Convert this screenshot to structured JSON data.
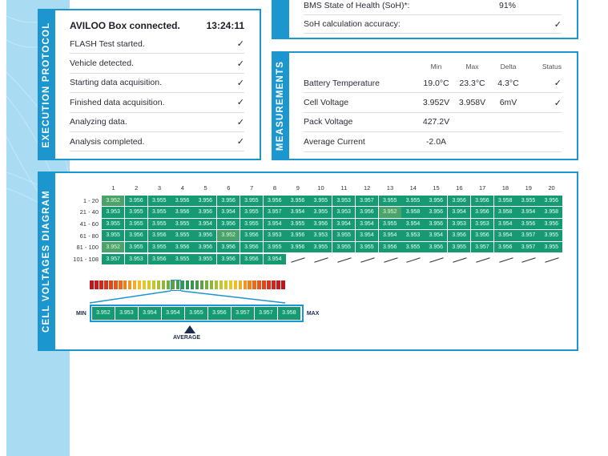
{
  "colors": {
    "accent": "#1b96cf",
    "side_band": "#a9dcf3",
    "cell_normal": "#159a74",
    "cell_low": "#4aa36a",
    "text_dark": "#1d2a4a"
  },
  "soh_panel": {
    "rows": [
      {
        "label": "BMS State of Health (SoH)*:",
        "value": "91%"
      },
      {
        "label": "SoH calculation accuracy:",
        "value": "✓"
      }
    ]
  },
  "execution_protocol": {
    "title": "EXECUTION PROTOCOL",
    "header": {
      "label": "AVILOO Box connected.",
      "time": "13:24:11"
    },
    "steps": [
      {
        "label": "FLASH Test started.",
        "status": "✓"
      },
      {
        "label": "Vehicle detected.",
        "status": "✓"
      },
      {
        "label": "Starting data acquisition.",
        "status": "✓"
      },
      {
        "label": "Finished data acquisition.",
        "status": "✓"
      },
      {
        "label": "Analyzing data.",
        "status": "✓"
      },
      {
        "label": "Analysis completed.",
        "status": "✓"
      }
    ]
  },
  "measurements": {
    "title": "MEASUREMENTS",
    "columns": [
      "",
      "Min",
      "Max",
      "Delta",
      "Status"
    ],
    "rows": [
      {
        "label": "Battery Temperature",
        "min": "19.0°C",
        "max": "23.3°C",
        "delta": "4.3°C",
        "status": "✓"
      },
      {
        "label": "Cell Voltage",
        "min": "3.952V",
        "max": "3.958V",
        "delta": "6mV",
        "status": "✓"
      },
      {
        "label": "Pack Voltage",
        "min": "427.2V",
        "max": "",
        "delta": "",
        "status": ""
      },
      {
        "label": "Average Current",
        "min": "-2.0A",
        "max": "",
        "delta": "",
        "status": ""
      }
    ]
  },
  "cell_voltages": {
    "title": "CELL VOLTAGES DIAGRAM",
    "columns": [
      "1",
      "2",
      "3",
      "4",
      "5",
      "6",
      "7",
      "8",
      "9",
      "10",
      "11",
      "12",
      "13",
      "14",
      "15",
      "16",
      "17",
      "18",
      "19",
      "20"
    ],
    "rows": [
      {
        "label": "1 - 20",
        "values": [
          "3.952",
          "3.956",
          "3.955",
          "3.956",
          "3.956",
          "3.956",
          "3.955",
          "3.956",
          "3.956",
          "3.955",
          "3.953",
          "3.957",
          "3.955",
          "3.955",
          "3.956",
          "3.956",
          "3.956",
          "3.958",
          "3.955",
          "3.956"
        ]
      },
      {
        "label": "21 - 40",
        "values": [
          "3.953",
          "3.955",
          "3.955",
          "3.956",
          "3.956",
          "3.954",
          "3.955",
          "3.957",
          "3.954",
          "3.955",
          "3.953",
          "3.956",
          "3.952",
          "3.958",
          "3.956",
          "3.954",
          "3.956",
          "3.958",
          "3.954",
          "3.958"
        ]
      },
      {
        "label": "41 - 60",
        "values": [
          "3.955",
          "3.955",
          "3.955",
          "3.955",
          "3.954",
          "3.956",
          "3.955",
          "3.954",
          "3.955",
          "3.956",
          "3.954",
          "3.954",
          "3.955",
          "3.954",
          "3.956",
          "3.953",
          "3.953",
          "3.954",
          "3.956",
          "3.956"
        ]
      },
      {
        "label": "61 - 80",
        "values": [
          "3.955",
          "3.956",
          "3.956",
          "3.955",
          "3.956",
          "3.952",
          "3.956",
          "3.953",
          "3.956",
          "3.953",
          "3.955",
          "3.954",
          "3.954",
          "3.953",
          "3.954",
          "3.956",
          "3.956",
          "3.954",
          "3.957",
          "3.955"
        ]
      },
      {
        "label": "81 - 100",
        "values": [
          "3.952",
          "3.955",
          "3.955",
          "3.956",
          "3.956",
          "3.956",
          "3.956",
          "3.955",
          "3.956",
          "3.955",
          "3.955",
          "3.955",
          "3.956",
          "3.955",
          "3.956",
          "3.955",
          "3.957",
          "3.956",
          "3.957",
          "3.955"
        ]
      },
      {
        "label": "101 - 108",
        "values": [
          "3.957",
          "3.953",
          "3.956",
          "3.955",
          "3.955",
          "3.956",
          "3.956",
          "3.954"
        ]
      }
    ],
    "low_value": "3.952",
    "legend": {
      "min_label": "MIN",
      "max_label": "MAX",
      "average_label": "AVERAGE",
      "values": [
        "3.952",
        "3.953",
        "3.954",
        "3.954",
        "3.955",
        "3.956",
        "3.957",
        "3.957",
        "3.958"
      ]
    },
    "scale_colors": [
      "#c0151b",
      "#c71c1b",
      "#cf271b",
      "#d6361b",
      "#de471b",
      "#e4581b",
      "#e96c1d",
      "#ee8020",
      "#f19623",
      "#f4ab27",
      "#f2bc27",
      "#e8c628",
      "#d6c82b",
      "#c1c52f",
      "#a9bf33",
      "#8fb638",
      "#75ac3d",
      "#5ca243",
      "#4a9a4a",
      "#3a9552",
      "#2e9458",
      "#3a9552",
      "#4a9a4a",
      "#5ca243",
      "#75ac3d",
      "#8fb638",
      "#a9bf33",
      "#c1c52f",
      "#d6c82b",
      "#e8c628",
      "#f2bc27",
      "#f4ab27",
      "#f19623",
      "#ee8020",
      "#e96c1d",
      "#e4581b",
      "#de471b",
      "#d6361b",
      "#cf271b",
      "#c71c1b",
      "#c0151b"
    ]
  }
}
